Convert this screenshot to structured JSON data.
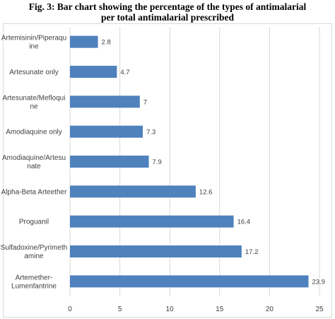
{
  "title_line1": "Fig. 3: Bar chart showing the percentage of the types of antimalarial",
  "title_line2": "per total antimalarial prescribed",
  "chart_data": {
    "type": "bar",
    "orientation": "horizontal",
    "categories": [
      [
        "Artemisinin/Piperaqu",
        "ine"
      ],
      [
        "Artesunate only"
      ],
      [
        "Artesunate/Mefloqui",
        "ne"
      ],
      [
        "Amodiaquine only"
      ],
      [
        "Amodiaquine/Artesu",
        "nate"
      ],
      [
        "Alpha-Beta Arteether"
      ],
      [
        "Proguanil"
      ],
      [
        "Sulfadoxine/Pyrimeth",
        "amine"
      ],
      [
        "Artemether-",
        "Lumenfantrine"
      ]
    ],
    "values": [
      2.8,
      4.7,
      7,
      7.3,
      7.9,
      12.6,
      16.4,
      17.2,
      23.9
    ],
    "value_labels": [
      "2.8",
      "4.7",
      "7",
      "7.3",
      "7.9",
      "12.6",
      "16.4",
      "17.2",
      "23.9"
    ],
    "xlim": [
      0,
      25
    ],
    "xticks": [
      0,
      5,
      10,
      15,
      20,
      25
    ],
    "grid": true,
    "bar_color": "#4f81bd",
    "grid_color": "#d9d9d9"
  }
}
